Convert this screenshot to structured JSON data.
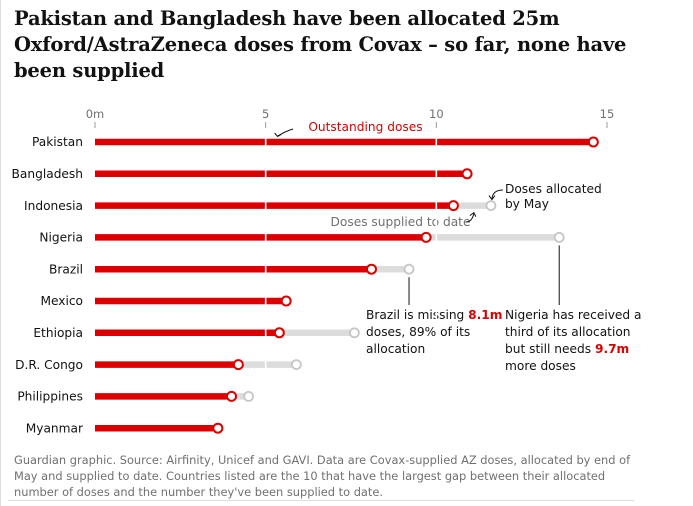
{
  "title": "Pakistan and Bangladesh have been allocated 25m Oxford/AstraZeneca doses from Covax – so far, none have been supplied",
  "footer": "Guardian graphic. Source: Airfinity, Unicef and GAVI. Data are Covax-supplied AZ doses, allocated by end of May and supplied to date. Countries listed are the 10 that have the largest gap between their allocated number of doses and the number they've been supplied to date.",
  "colors": {
    "outstanding": "#dd0000",
    "supplied": "#dcdcdc",
    "text": "#121212",
    "muted": "#707070",
    "grid": "#ffffff"
  },
  "chart_data": {
    "type": "bar",
    "orientation": "horizontal",
    "title": "Pakistan and Bangladesh have been allocated 25m Oxford/AstraZeneca doses from Covax – so far, none have been supplied",
    "xlim": [
      0,
      15
    ],
    "ticks": [
      {
        "value": 0,
        "label": "0m"
      },
      {
        "value": 5,
        "label": "5"
      },
      {
        "value": 10,
        "label": "10"
      },
      {
        "value": 15,
        "label": "15"
      }
    ],
    "categories": [
      "Pakistan",
      "Bangladesh",
      "Indonesia",
      "Nigeria",
      "Brazil",
      "Mexico",
      "Ethiopia",
      "D.R. Congo",
      "Philippines",
      "Myanmar"
    ],
    "series": [
      {
        "name": "Outstanding doses",
        "values": [
          14.6,
          10.9,
          10.5,
          9.7,
          8.1,
          5.6,
          5.4,
          4.2,
          4.0,
          3.6
        ]
      },
      {
        "name": "Doses supplied to date",
        "values": [
          0,
          0,
          1.1,
          3.9,
          1.1,
          0,
          2.2,
          1.7,
          0.5,
          0
        ]
      }
    ],
    "allocated": [
      14.6,
      10.9,
      11.6,
      13.6,
      9.2,
      5.6,
      7.6,
      5.9,
      4.5,
      3.6
    ],
    "labels": {
      "outstanding": "Outstanding doses",
      "allocated_line1": "Doses allocated",
      "allocated_line2": "by May",
      "supplied": "Doses supplied to date"
    },
    "annotations": [
      {
        "id": "brazil",
        "lines": [
          [
            {
              "text": "Brazil is missing "
            },
            {
              "text": "8.1m",
              "highlight": true
            }
          ],
          [
            {
              "text": "doses, 89% of its"
            }
          ],
          [
            {
              "text": "allocation"
            }
          ]
        ]
      },
      {
        "id": "nigeria",
        "lines": [
          [
            {
              "text": "Nigeria has received a"
            }
          ],
          [
            {
              "text": "third of its allocation"
            }
          ],
          [
            {
              "text": "but still needs "
            },
            {
              "text": "9.7m",
              "highlight": true
            }
          ],
          [
            {
              "text": "more doses"
            }
          ]
        ]
      }
    ]
  }
}
